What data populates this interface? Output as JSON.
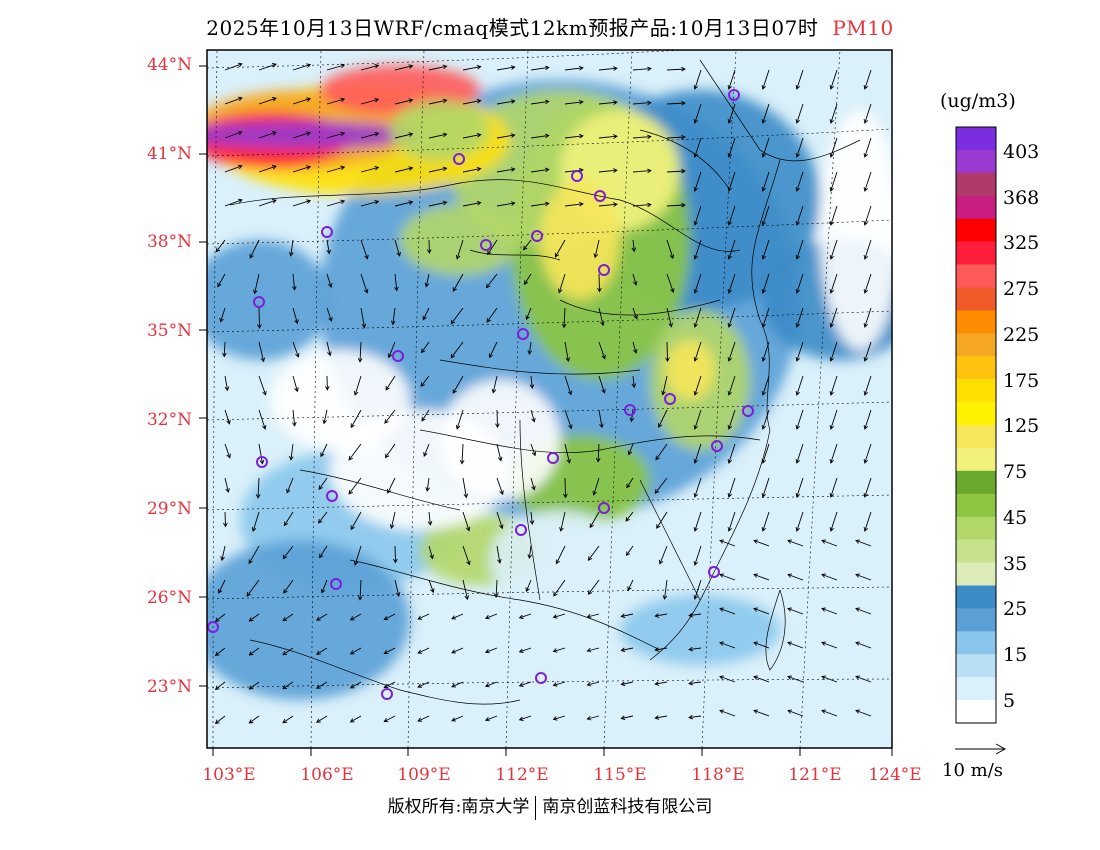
{
  "header": {
    "title": "2025年10月13日WRF/cmaq模式12km预报产品:10月13日07时",
    "pollutant": "PM10"
  },
  "axes": {
    "lat_labels": [
      "44°N",
      "41°N",
      "38°N",
      "35°N",
      "32°N",
      "29°N",
      "26°N",
      "23°N"
    ],
    "lon_labels": [
      "103°E",
      "106°E",
      "109°E",
      "112°E",
      "115°E",
      "118°E",
      "121°E",
      "124°E"
    ]
  },
  "colorbar": {
    "unit": "(ug/m3)",
    "labels": [
      "403",
      "368",
      "325",
      "275",
      "225",
      "175",
      "125",
      "75",
      "45",
      "35",
      "25",
      "15",
      "5"
    ],
    "colors": [
      "#7b2ee0",
      "#9a3ad0",
      "#b03a6a",
      "#c81e80",
      "#ff0000",
      "#ff1e3c",
      "#ff5a5a",
      "#f05a28",
      "#ff8c00",
      "#f5a623",
      "#ffc20e",
      "#ffe000",
      "#fff200",
      "#f6e65a",
      "#f0f27a",
      "#6aa82e",
      "#8cc640",
      "#b2d768",
      "#c6e38c",
      "#dcebb8",
      "#3c8cc8",
      "#5aa0d6",
      "#8ac6ec",
      "#b8dff4",
      "#daf0fa",
      "#ffffff"
    ]
  },
  "wind": {
    "label": "10 m/s"
  },
  "stations_count": 25,
  "footer": {
    "copyright_left": "版权所有:南京大学",
    "copyright_right": "南京创蓝科技有限公司"
  }
}
